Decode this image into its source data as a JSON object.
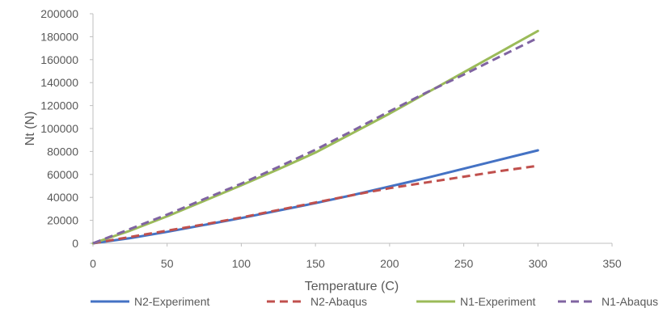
{
  "chart_data": {
    "type": "line",
    "title": "",
    "xlabel": "Temperature (C)",
    "ylabel": "Nt (N)",
    "xlim": [
      0,
      350
    ],
    "ylim": [
      0,
      200000
    ],
    "x_ticks": [
      "0",
      "50",
      "100",
      "150",
      "200",
      "250",
      "300",
      "350"
    ],
    "y_ticks": [
      "0",
      "20000",
      "40000",
      "60000",
      "80000",
      "100000",
      "120000",
      "140000",
      "160000",
      "180000",
      "200000"
    ],
    "grid": false,
    "legend_position": "bottom",
    "series": [
      {
        "name": "N2-Experiment",
        "color": "#4472C4",
        "dash": "solid",
        "x": [
          0,
          25,
          50,
          75,
          100,
          125,
          150,
          175,
          200,
          225,
          250,
          275,
          300
        ],
        "y": [
          0,
          4500,
          10000,
          16000,
          22000,
          28500,
          35000,
          42000,
          49500,
          57000,
          65000,
          73000,
          81000
        ]
      },
      {
        "name": "N2-Abaqus",
        "color": "#C0504D",
        "dash": "dashed",
        "x": [
          0,
          25,
          50,
          75,
          100,
          125,
          150,
          175,
          200,
          225,
          250,
          275,
          300
        ],
        "y": [
          0,
          5500,
          11000,
          16500,
          22500,
          29000,
          35500,
          42000,
          48000,
          53000,
          58000,
          63000,
          67500
        ]
      },
      {
        "name": "N1-Experiment",
        "color": "#9BBB59",
        "dash": "solid",
        "x": [
          0,
          25,
          50,
          75,
          100,
          125,
          150,
          175,
          200,
          225,
          250,
          275,
          300
        ],
        "y": [
          0,
          11000,
          23500,
          37000,
          50500,
          64500,
          79000,
          96000,
          113000,
          131000,
          149000,
          167000,
          185000
        ]
      },
      {
        "name": "N1-Abaqus",
        "color": "#8064A2",
        "dash": "dashed",
        "x": [
          0,
          25,
          50,
          75,
          100,
          125,
          150,
          175,
          200,
          225,
          250,
          275,
          300
        ],
        "y": [
          0,
          12500,
          25000,
          38500,
          52000,
          66500,
          81500,
          98000,
          115000,
          131500,
          147000,
          163000,
          179000
        ]
      }
    ]
  }
}
